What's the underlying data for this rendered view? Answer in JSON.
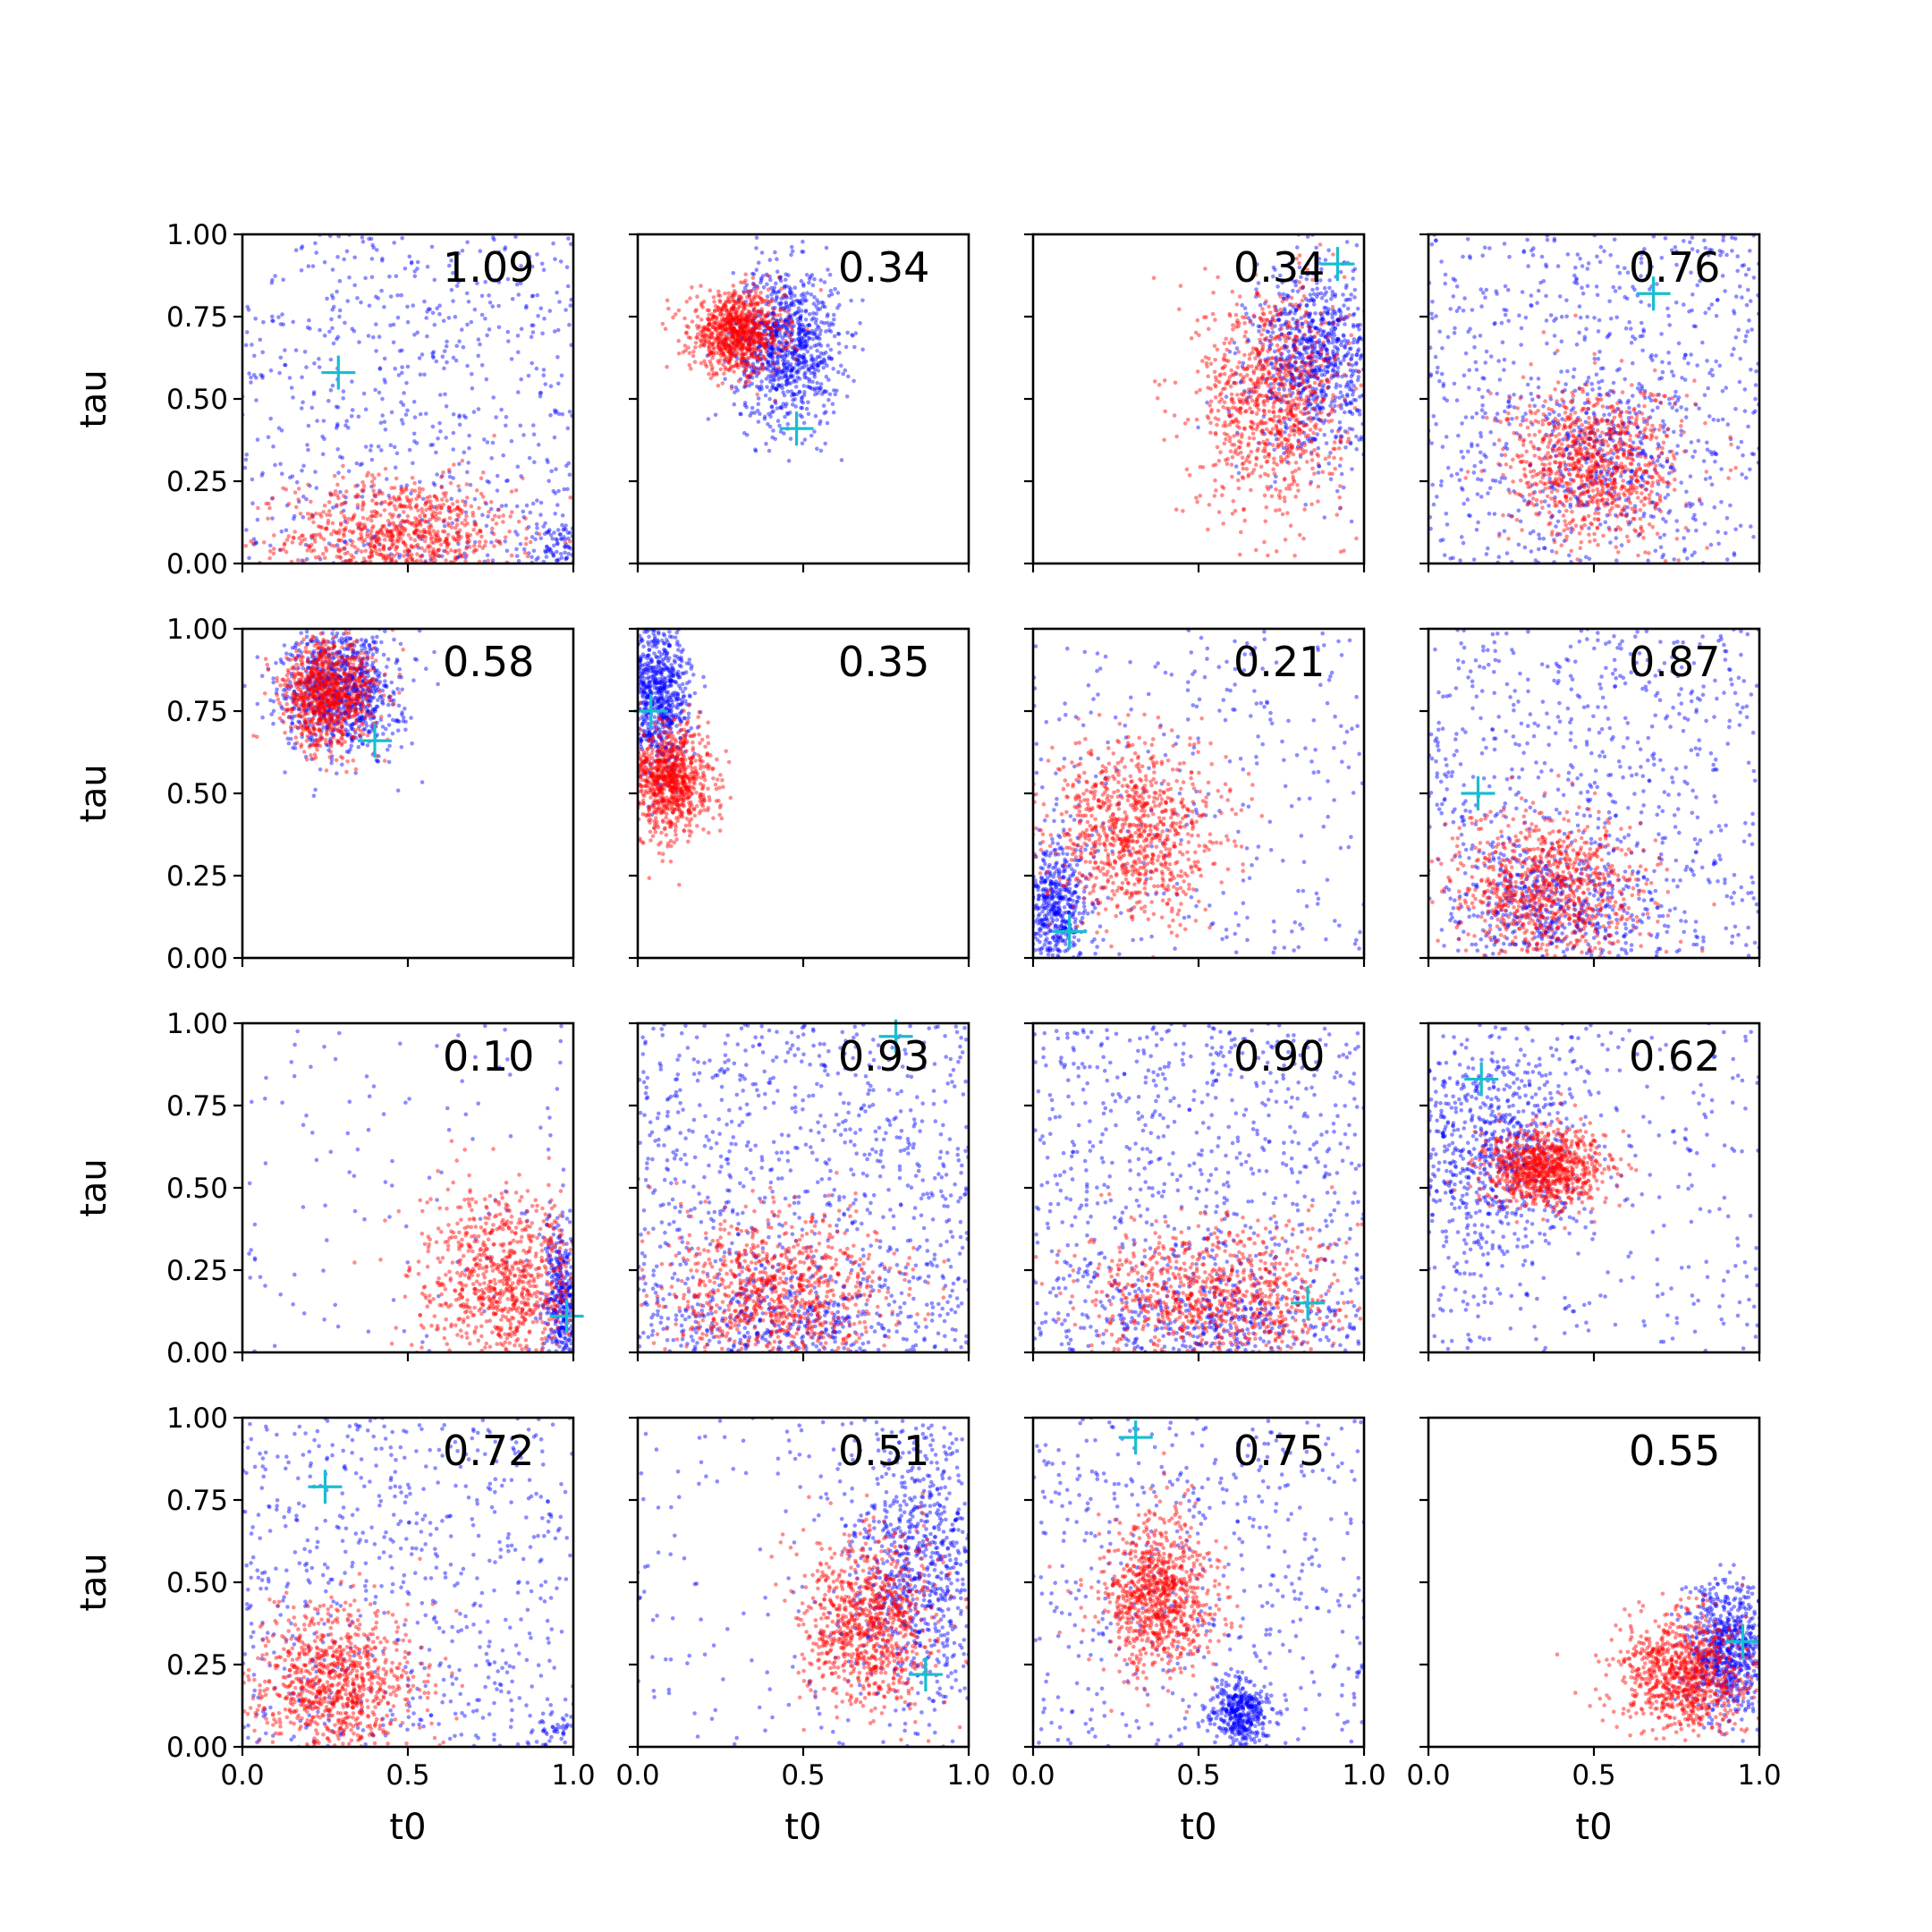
{
  "figure": {
    "type": "scatter-grid",
    "rows": 4,
    "cols": 4,
    "xlabel": "t0",
    "ylabel": "tau",
    "xlim": [
      0.0,
      1.0
    ],
    "ylim": [
      0.0,
      1.0
    ],
    "x_ticks": [
      "0.0",
      "0.5",
      "1.0"
    ],
    "y_ticks": [
      "0.00",
      "0.25",
      "0.50",
      "0.75",
      "1.00"
    ],
    "series_colors": {
      "blue": "#0000ff",
      "red": "#ff0000",
      "marker": "#17becf"
    }
  },
  "chart_data": [
    {
      "type": "scatter",
      "label": "1.09",
      "marker": [
        0.29,
        0.58
      ],
      "clusters": [
        {
          "color": "blue",
          "cx": 0.5,
          "cy": 0.5,
          "sx": 0.3,
          "sy": 0.3,
          "n": 650,
          "uniform": true
        },
        {
          "color": "blue",
          "cx": 0.95,
          "cy": 0.05,
          "sx": 0.04,
          "sy": 0.04,
          "n": 80
        },
        {
          "color": "red",
          "cx": 0.48,
          "cy": 0.08,
          "sx": 0.17,
          "sy": 0.09,
          "n": 900
        }
      ]
    },
    {
      "type": "scatter",
      "label": "0.34",
      "marker": [
        0.48,
        0.41
      ],
      "clusters": [
        {
          "color": "blue",
          "cx": 0.45,
          "cy": 0.66,
          "sx": 0.08,
          "sy": 0.12,
          "n": 900
        },
        {
          "color": "red",
          "cx": 0.3,
          "cy": 0.7,
          "sx": 0.07,
          "sy": 0.06,
          "n": 900
        }
      ]
    },
    {
      "type": "scatter",
      "label": "0.34",
      "marker": [
        0.92,
        0.91
      ],
      "clusters": [
        {
          "color": "blue",
          "cx": 0.86,
          "cy": 0.62,
          "sx": 0.1,
          "sy": 0.14,
          "n": 900
        },
        {
          "color": "red",
          "cx": 0.72,
          "cy": 0.5,
          "sx": 0.11,
          "sy": 0.17,
          "n": 900
        }
      ]
    },
    {
      "type": "scatter",
      "label": "0.76",
      "marker": [
        0.68,
        0.82
      ],
      "clusters": [
        {
          "color": "blue",
          "cx": 0.5,
          "cy": 0.5,
          "sx": 0.3,
          "sy": 0.3,
          "n": 700,
          "uniform": true
        },
        {
          "color": "blue",
          "cx": 0.52,
          "cy": 0.34,
          "sx": 0.13,
          "sy": 0.12,
          "n": 300
        },
        {
          "color": "red",
          "cx": 0.5,
          "cy": 0.3,
          "sx": 0.13,
          "sy": 0.12,
          "n": 900
        }
      ]
    },
    {
      "type": "scatter",
      "label": "0.58",
      "marker": [
        0.4,
        0.66
      ],
      "clusters": [
        {
          "color": "blue",
          "cx": 0.3,
          "cy": 0.82,
          "sx": 0.09,
          "sy": 0.1,
          "n": 900
        },
        {
          "color": "red",
          "cx": 0.26,
          "cy": 0.8,
          "sx": 0.07,
          "sy": 0.08,
          "n": 900
        }
      ]
    },
    {
      "type": "scatter",
      "label": "0.35",
      "marker": [
        0.04,
        0.75
      ],
      "clusters": [
        {
          "color": "blue",
          "cx": 0.06,
          "cy": 0.8,
          "sx": 0.05,
          "sy": 0.12,
          "n": 800
        },
        {
          "color": "red",
          "cx": 0.1,
          "cy": 0.54,
          "sx": 0.06,
          "sy": 0.08,
          "n": 900
        }
      ]
    },
    {
      "type": "scatter",
      "label": "0.21",
      "marker": [
        0.11,
        0.08
      ],
      "clusters": [
        {
          "color": "blue",
          "cx": 0.5,
          "cy": 0.5,
          "sx": 0.3,
          "sy": 0.3,
          "n": 300,
          "uniform": true
        },
        {
          "color": "blue",
          "cx": 0.07,
          "cy": 0.15,
          "sx": 0.05,
          "sy": 0.1,
          "n": 500
        },
        {
          "color": "red",
          "cx": 0.3,
          "cy": 0.38,
          "sx": 0.13,
          "sy": 0.13,
          "n": 900
        }
      ]
    },
    {
      "type": "scatter",
      "label": "0.87",
      "marker": [
        0.15,
        0.5
      ],
      "clusters": [
        {
          "color": "blue",
          "cx": 0.5,
          "cy": 0.5,
          "sx": 0.3,
          "sy": 0.3,
          "n": 700,
          "uniform": true
        },
        {
          "color": "blue",
          "cx": 0.38,
          "cy": 0.15,
          "sx": 0.15,
          "sy": 0.1,
          "n": 400
        },
        {
          "color": "red",
          "cx": 0.36,
          "cy": 0.2,
          "sx": 0.15,
          "sy": 0.12,
          "n": 900
        }
      ]
    },
    {
      "type": "scatter",
      "label": "0.10",
      "marker": [
        0.98,
        0.11
      ],
      "clusters": [
        {
          "color": "blue",
          "cx": 0.5,
          "cy": 0.5,
          "sx": 0.3,
          "sy": 0.3,
          "n": 120,
          "uniform": true
        },
        {
          "color": "blue",
          "cx": 0.97,
          "cy": 0.15,
          "sx": 0.03,
          "sy": 0.12,
          "n": 400
        },
        {
          "color": "red",
          "cx": 0.8,
          "cy": 0.22,
          "sx": 0.13,
          "sy": 0.13,
          "n": 900
        }
      ]
    },
    {
      "type": "scatter",
      "label": "0.93",
      "marker": [
        0.78,
        0.96
      ],
      "clusters": [
        {
          "color": "blue",
          "cx": 0.5,
          "cy": 0.5,
          "sx": 0.3,
          "sy": 0.3,
          "n": 900,
          "uniform": true
        },
        {
          "color": "blue",
          "cx": 0.45,
          "cy": 0.1,
          "sx": 0.22,
          "sy": 0.08,
          "n": 300
        },
        {
          "color": "red",
          "cx": 0.42,
          "cy": 0.18,
          "sx": 0.18,
          "sy": 0.12,
          "n": 900
        }
      ]
    },
    {
      "type": "scatter",
      "label": "0.90",
      "marker": [
        0.83,
        0.15
      ],
      "clusters": [
        {
          "color": "blue",
          "cx": 0.5,
          "cy": 0.5,
          "sx": 0.3,
          "sy": 0.3,
          "n": 800,
          "uniform": true
        },
        {
          "color": "blue",
          "cx": 0.55,
          "cy": 0.1,
          "sx": 0.25,
          "sy": 0.07,
          "n": 300
        },
        {
          "color": "red",
          "cx": 0.55,
          "cy": 0.16,
          "sx": 0.2,
          "sy": 0.12,
          "n": 900
        }
      ]
    },
    {
      "type": "scatter",
      "label": "0.62",
      "marker": [
        0.16,
        0.83
      ],
      "clusters": [
        {
          "color": "blue",
          "cx": 0.5,
          "cy": 0.5,
          "sx": 0.3,
          "sy": 0.3,
          "n": 300,
          "uniform": true
        },
        {
          "color": "blue",
          "cx": 0.18,
          "cy": 0.6,
          "sx": 0.12,
          "sy": 0.18,
          "n": 700
        },
        {
          "color": "red",
          "cx": 0.35,
          "cy": 0.56,
          "sx": 0.09,
          "sy": 0.06,
          "n": 900
        }
      ]
    },
    {
      "type": "scatter",
      "label": "0.72",
      "marker": [
        0.25,
        0.79
      ],
      "clusters": [
        {
          "color": "blue",
          "cx": 0.5,
          "cy": 0.5,
          "sx": 0.3,
          "sy": 0.3,
          "n": 650,
          "uniform": true
        },
        {
          "color": "blue",
          "cx": 0.95,
          "cy": 0.05,
          "sx": 0.03,
          "sy": 0.03,
          "n": 40
        },
        {
          "color": "red",
          "cx": 0.28,
          "cy": 0.2,
          "sx": 0.13,
          "sy": 0.11,
          "n": 900
        }
      ]
    },
    {
      "type": "scatter",
      "label": "0.51",
      "marker": [
        0.87,
        0.22
      ],
      "clusters": [
        {
          "color": "blue",
          "cx": 0.85,
          "cy": 0.55,
          "sx": 0.1,
          "sy": 0.22,
          "n": 800
        },
        {
          "color": "blue",
          "cx": 0.5,
          "cy": 0.5,
          "sx": 0.3,
          "sy": 0.3,
          "n": 150,
          "uniform": true
        },
        {
          "color": "red",
          "cx": 0.7,
          "cy": 0.38,
          "sx": 0.1,
          "sy": 0.13,
          "n": 900
        }
      ]
    },
    {
      "type": "scatter",
      "label": "0.75",
      "marker": [
        0.31,
        0.94
      ],
      "clusters": [
        {
          "color": "blue",
          "cx": 0.5,
          "cy": 0.5,
          "sx": 0.3,
          "sy": 0.3,
          "n": 500,
          "uniform": true
        },
        {
          "color": "blue",
          "cx": 0.63,
          "cy": 0.1,
          "sx": 0.04,
          "sy": 0.05,
          "n": 400
        },
        {
          "color": "red",
          "cx": 0.38,
          "cy": 0.46,
          "sx": 0.08,
          "sy": 0.12,
          "n": 900
        }
      ]
    },
    {
      "type": "scatter",
      "label": "0.55",
      "marker": [
        0.95,
        0.32
      ],
      "clusters": [
        {
          "color": "blue",
          "cx": 0.9,
          "cy": 0.28,
          "sx": 0.06,
          "sy": 0.1,
          "n": 700
        },
        {
          "color": "red",
          "cx": 0.78,
          "cy": 0.22,
          "sx": 0.1,
          "sy": 0.09,
          "n": 900
        }
      ]
    }
  ]
}
